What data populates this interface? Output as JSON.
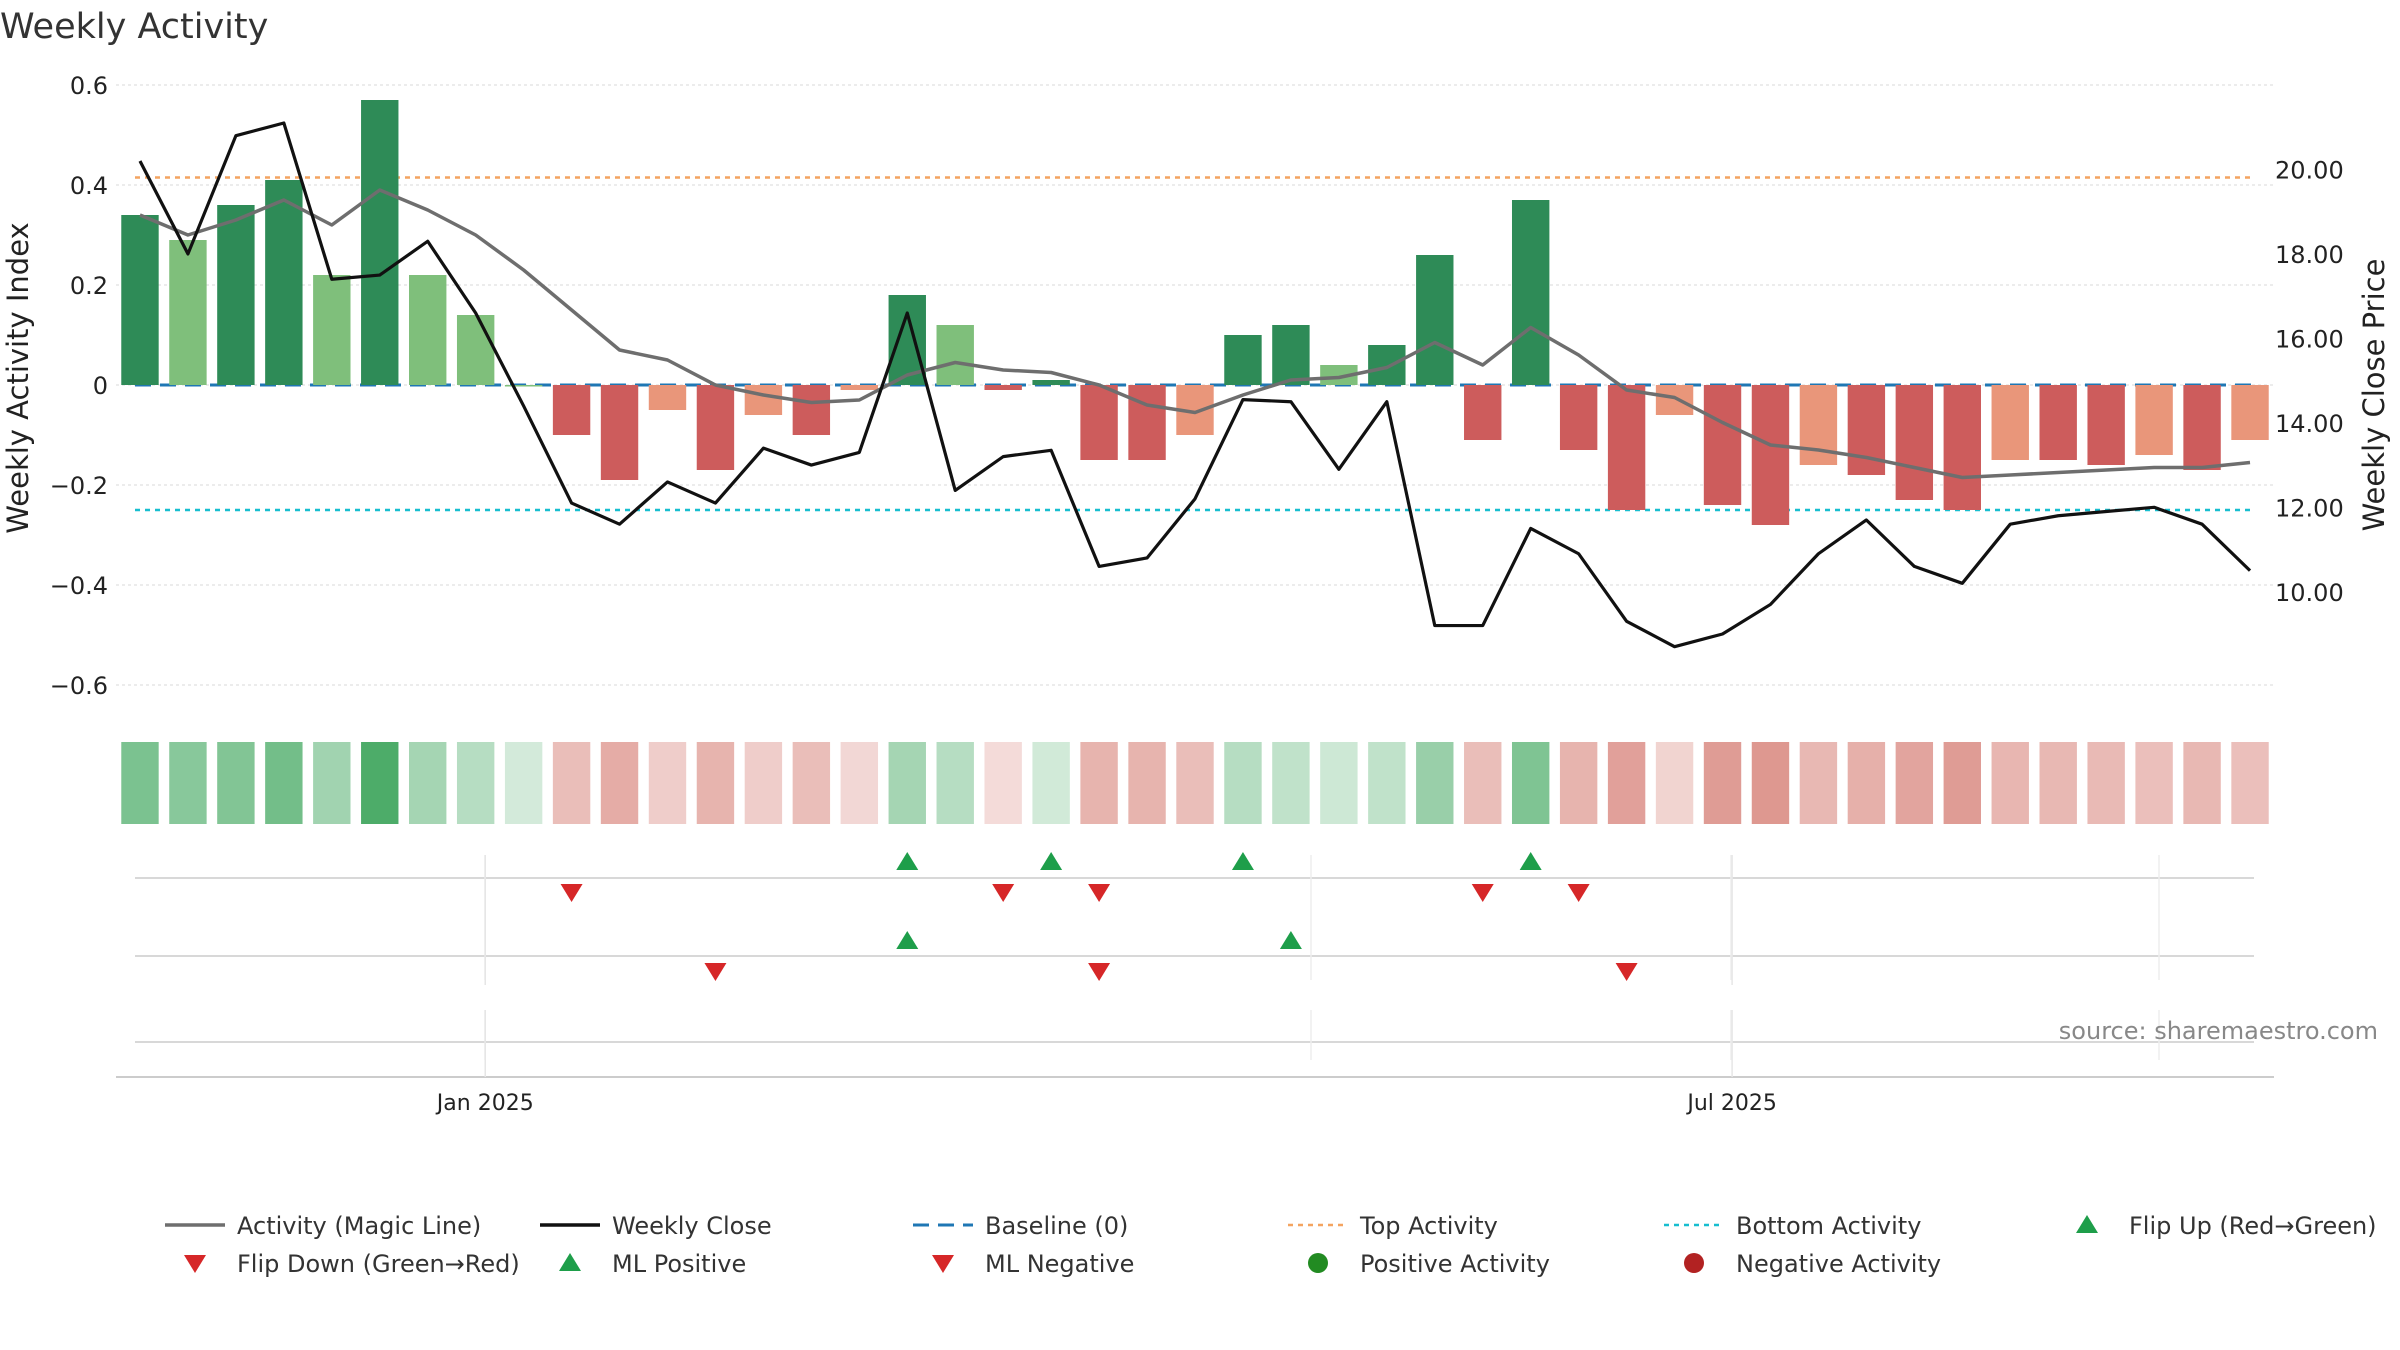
{
  "chart_data": {
    "type": "bar",
    "title": "Weekly Activity",
    "ylabel": "Weekly Activity Index",
    "y2label": "Weekly Close Price",
    "ylim": [
      -0.65,
      0.6
    ],
    "y2lim": [
      7.2,
      22.0
    ],
    "y_ticks": [
      0.6,
      0.4,
      0.2,
      0,
      -0.2,
      -0.4,
      -0.6
    ],
    "y_tick_labels": [
      "0.6",
      "0.4",
      "0.2",
      "0",
      "−0.2",
      "−0.4",
      "−0.6"
    ],
    "y2_ticks": [
      20,
      18,
      16,
      14,
      12,
      10
    ],
    "y2_tick_labels": [
      "20.00",
      "18.00",
      "16.00",
      "14.00",
      "12.00",
      "10.00"
    ],
    "x_ticks": [
      {
        "index": 7.7,
        "label": "Jan 2025"
      },
      {
        "index": 33.7,
        "label": "Jul 2025"
      }
    ],
    "activity": [
      0.34,
      0.29,
      0.36,
      0.41,
      0.22,
      0.57,
      0.22,
      0.14,
      0.0,
      -0.1,
      -0.19,
      -0.05,
      -0.17,
      -0.06,
      -0.1,
      -0.01,
      0.18,
      0.12,
      -0.01,
      0.01,
      -0.15,
      -0.15,
      -0.1,
      0.1,
      0.12,
      0.04,
      0.08,
      0.26,
      -0.11,
      0.37,
      -0.13,
      -0.25,
      -0.06,
      -0.24,
      -0.28,
      -0.16,
      -0.18,
      -0.23,
      -0.25,
      -0.15,
      -0.15,
      -0.16,
      -0.14,
      -0.17,
      -0.11
    ],
    "bar_colors": [
      "#2e8b57",
      "#7fbf7b",
      "#2e8b57",
      "#2e8b57",
      "#7fbf7b",
      "#2e8b57",
      "#7fbf7b",
      "#7fbf7b",
      "#7fbf7b",
      "#cd5c5c",
      "#cd5c5c",
      "#e9967a",
      "#cd5c5c",
      "#e9967a",
      "#cd5c5c",
      "#e9967a",
      "#2e8b57",
      "#7fbf7b",
      "#cd5c5c",
      "#2e8b57",
      "#cd5c5c",
      "#cd5c5c",
      "#e9967a",
      "#2e8b57",
      "#2e8b57",
      "#7fbf7b",
      "#2e8b57",
      "#2e8b57",
      "#cd5c5c",
      "#2e8b57",
      "#cd5c5c",
      "#cd5c5c",
      "#e9967a",
      "#cd5c5c",
      "#cd5c5c",
      "#e9967a",
      "#cd5c5c",
      "#cd5c5c",
      "#cd5c5c",
      "#e9967a",
      "#cd5c5c",
      "#cd5c5c",
      "#e9967a",
      "#cd5c5c",
      "#e9967a"
    ],
    "magic_line": [
      0.34,
      0.3,
      0.33,
      0.37,
      0.32,
      0.39,
      0.35,
      0.3,
      0.23,
      0.15,
      0.07,
      0.05,
      0.0,
      -0.02,
      -0.035,
      -0.03,
      0.02,
      0.045,
      0.03,
      0.025,
      0.0,
      -0.04,
      -0.055,
      -0.02,
      0.01,
      0.015,
      0.035,
      0.085,
      0.04,
      0.115,
      0.06,
      -0.01,
      -0.025,
      -0.075,
      -0.12,
      -0.13,
      -0.145,
      -0.165,
      -0.185,
      -0.18,
      -0.175,
      -0.17,
      -0.165,
      -0.165,
      -0.155
    ],
    "weekly_close": [
      20.2,
      18.0,
      20.8,
      21.1,
      17.4,
      17.5,
      18.3,
      16.6,
      14.4,
      12.1,
      11.6,
      12.6,
      12.1,
      13.4,
      13.0,
      13.3,
      16.6,
      12.4,
      13.2,
      13.35,
      10.6,
      10.8,
      12.2,
      14.55,
      14.5,
      12.9,
      14.5,
      9.2,
      9.2,
      11.5,
      10.9,
      9.3,
      8.7,
      9.0,
      9.7,
      10.9,
      11.7,
      10.6,
      10.2,
      11.6,
      11.8,
      11.9,
      12.0,
      11.6,
      10.5
    ],
    "top_activity": 0.415,
    "bottom_activity": -0.25,
    "heat_strip": [
      0.63,
      0.57,
      0.6,
      0.67,
      0.45,
      0.85,
      0.43,
      0.35,
      0.21,
      0.33,
      0.42,
      0.25,
      0.38,
      0.25,
      0.33,
      0.2,
      0.43,
      0.35,
      0.18,
      0.22,
      0.38,
      0.38,
      0.33,
      0.35,
      0.3,
      0.24,
      0.3,
      0.49,
      0.33,
      0.61,
      0.38,
      0.48,
      0.22,
      0.5,
      0.52,
      0.36,
      0.4,
      0.46,
      0.5,
      0.37,
      0.36,
      0.35,
      0.32,
      0.36,
      0.32
    ],
    "flip_up": [
      16,
      19,
      23,
      29
    ],
    "flip_down": [
      9,
      18,
      20,
      28,
      30
    ],
    "ml_positive": [
      16,
      24
    ],
    "ml_negative": [
      12,
      20,
      31
    ],
    "source": "source: sharemaestro.com",
    "colors": {
      "strong_green": "#2e8b57",
      "light_green": "#7fbf7b",
      "strong_red": "#cd5c5c",
      "light_red": "#e9967a",
      "magic_line": "#6e6e6e",
      "weekly_close": "#111111",
      "baseline": "#1f77b4",
      "top_activity": "#f4a460",
      "bottom_activity": "#17becf",
      "flip_up": "#1e9e4a",
      "flip_down": "#d62728"
    },
    "legend": [
      {
        "label": "Activity (Magic Line)",
        "symbol": "line-gray"
      },
      {
        "label": "Weekly Close",
        "symbol": "line-black"
      },
      {
        "label": "Baseline (0)",
        "symbol": "dash-blue"
      },
      {
        "label": "Top Activity",
        "symbol": "dot-orange"
      },
      {
        "label": "Bottom Activity",
        "symbol": "dot-cyan"
      },
      {
        "label": "Flip Up (Red→Green)",
        "symbol": "tri-up-green"
      },
      {
        "label": "Flip Down (Green→Red)",
        "symbol": "tri-down-red"
      },
      {
        "label": "ML Positive",
        "symbol": "tri-up-green"
      },
      {
        "label": "ML Negative",
        "symbol": "tri-down-red"
      },
      {
        "label": "Positive Activity",
        "symbol": "circle-green"
      },
      {
        "label": "Negative Activity",
        "symbol": "circle-red"
      }
    ]
  }
}
